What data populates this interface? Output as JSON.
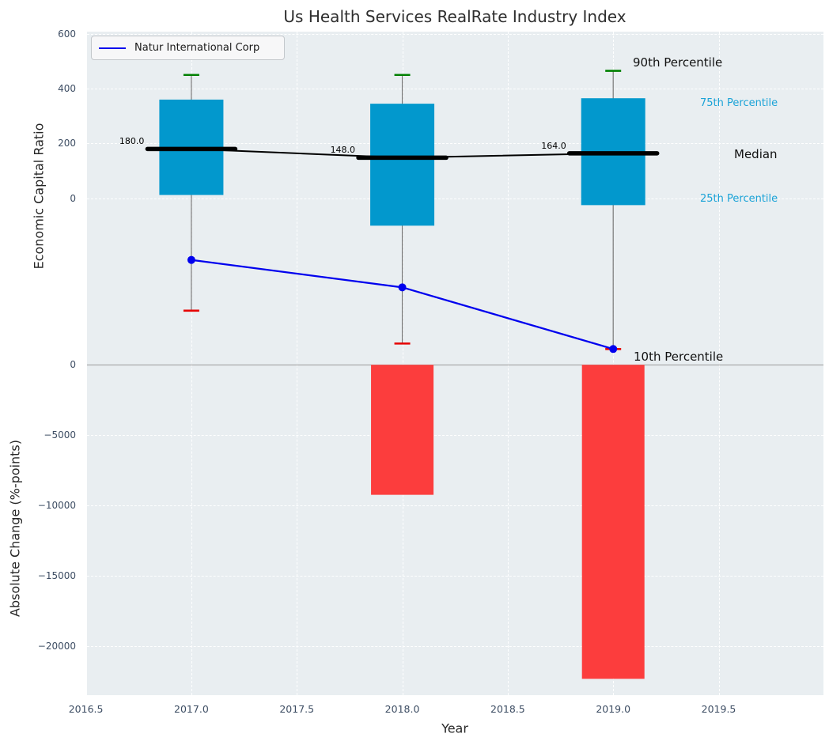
{
  "title": "Us Health Services RealRate Industry Index",
  "legend": {
    "label": "Natur International Corp"
  },
  "axes": {
    "x_label": "Year",
    "x_ticks": [
      {
        "label": "2016.5",
        "value": 2016.5
      },
      {
        "label": "2017.0",
        "value": 2017.0
      },
      {
        "label": "2017.5",
        "value": 2017.5
      },
      {
        "label": "2018.0",
        "value": 2018.0
      },
      {
        "label": "2018.5",
        "value": 2018.5
      },
      {
        "label": "2019.0",
        "value": 2019.0
      },
      {
        "label": "2019.5",
        "value": 2019.5
      }
    ],
    "y_top_label": "Economic Capital Ratio",
    "y_top_ticks": [
      {
        "label": "600",
        "value": 600
      },
      {
        "label": "400",
        "value": 400
      },
      {
        "label": "200",
        "value": 200
      },
      {
        "label": "0",
        "value": 0
      }
    ],
    "y_bottom_label": "Absolute Change (%-points)",
    "y_bottom_ticks": [
      {
        "label": "0",
        "value": 0
      },
      {
        "label": "−5000",
        "value": -5000
      },
      {
        "label": "−10000",
        "value": -10000
      },
      {
        "label": "−15000",
        "value": -15000
      },
      {
        "label": "−20000",
        "value": -20000
      }
    ]
  },
  "annotations": {
    "p90": "90th Percentile",
    "p75": "75th Percentile",
    "median": "Median",
    "p25": "25th Percentile",
    "p10": "10th Percentile"
  },
  "colors": {
    "box_fill": "#0298cd",
    "bar_fill": "#fc3d3d",
    "cap_top": "#008000",
    "cap_bottom": "#e60000",
    "company_line": "#0000ee",
    "median_line": "#000000",
    "whisker": "#777777",
    "plot_bg": "#e9eef1",
    "grid": "#ffffff",
    "zero_line": "#9a9a9a",
    "tick_text": "#3d4d63",
    "percentile_text": "#1ba3d7"
  },
  "chart_data": {
    "type": "boxplot",
    "title": "Us Health Services RealRate Industry Index",
    "xlabel": "Year",
    "ylabel_top": "Economic Capital Ratio",
    "ylabel_bottom": "Absolute Change (%-points)",
    "x_range": [
      2016.5,
      2019.98
    ],
    "y_top_axis": {
      "tick_values": [
        0,
        200,
        400,
        600
      ],
      "approx_range": [
        -610,
        615
      ]
    },
    "y_bottom_axis": {
      "tick_values": [
        0,
        -5000,
        -10000,
        -15000,
        -20000
      ],
      "approx_range": [
        -23500,
        30
      ]
    },
    "grid": true,
    "legend_position": "upper left",
    "boxes": [
      {
        "year": 2017,
        "p90": 450,
        "q3": 360,
        "median": 180,
        "q1": 12,
        "p10": -410,
        "median_label": "180.0"
      },
      {
        "year": 2018,
        "p90": 450,
        "q3": 345,
        "median": 148,
        "q1": -100,
        "p10": -530,
        "median_label": "148.0"
      },
      {
        "year": 2019,
        "p90": 465,
        "q3": 365,
        "median": 164,
        "q1": -25,
        "p10": -550,
        "median_label": "164.0"
      }
    ],
    "company_series": {
      "name": "Natur International Corp",
      "years": [
        2017,
        2018,
        2019
      ],
      "values": [
        -225,
        -325,
        -550
      ]
    },
    "change_bars": [
      {
        "year": 2018,
        "value": -9270
      },
      {
        "year": 2019,
        "value": -22330
      }
    ]
  }
}
